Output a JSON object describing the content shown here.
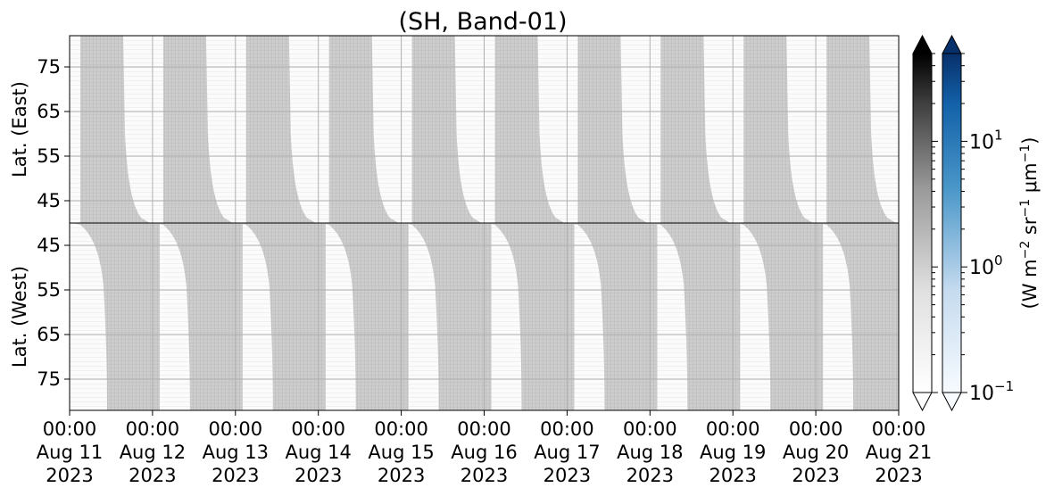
{
  "chart_data": {
    "type": "heatmap",
    "title": "(SH, Band-01)",
    "panels": [
      {
        "name": "east",
        "ylabel": "Lat. (East)",
        "ylim": [
          40,
          82
        ],
        "yticks": [
          45,
          55,
          65,
          75
        ],
        "inverted": false
      },
      {
        "name": "west",
        "ylabel": "Lat. (West)",
        "ylim": [
          40,
          82
        ],
        "yticks": [
          75,
          65,
          55,
          45
        ],
        "inverted": true
      }
    ],
    "x": {
      "start": "2023-08-11 00:00",
      "end": "2023-08-21 00:00",
      "ticks": [
        {
          "time": "00:00",
          "date": "Aug 11",
          "year": "2023"
        },
        {
          "time": "00:00",
          "date": "Aug 12",
          "year": "2023"
        },
        {
          "time": "00:00",
          "date": "Aug 13",
          "year": "2023"
        },
        {
          "time": "00:00",
          "date": "Aug 14",
          "year": "2023"
        },
        {
          "time": "00:00",
          "date": "Aug 15",
          "year": "2023"
        },
        {
          "time": "00:00",
          "date": "Aug 16",
          "year": "2023"
        },
        {
          "time": "00:00",
          "date": "Aug 17",
          "year": "2023"
        },
        {
          "time": "00:00",
          "date": "Aug 18",
          "year": "2023"
        },
        {
          "time": "00:00",
          "date": "Aug 19",
          "year": "2023"
        },
        {
          "time": "00:00",
          "date": "Aug 20",
          "year": "2023"
        },
        {
          "time": "00:00",
          "date": "Aug 21",
          "year": "2023"
        }
      ]
    },
    "colorbar": {
      "label_parts": [
        "(W m",
        "−2",
        " sr",
        "−1",
        " μm",
        "−1",
        ")"
      ],
      "scale": "log",
      "range": [
        0.1,
        50
      ],
      "cmaps": [
        "Greys",
        "Blues"
      ],
      "ticks": [
        {
          "value": 0.1,
          "base": "10",
          "exp": "−1"
        },
        {
          "value": 1,
          "base": "10",
          "exp": "0"
        },
        {
          "value": 10,
          "base": "10",
          "exp": "1"
        }
      ]
    },
    "grid": true,
    "daily_bands": {
      "period_days": 1,
      "east_fill_value": 0.6,
      "west_fill_value": 0.6,
      "background_value": 0.12
    }
  }
}
